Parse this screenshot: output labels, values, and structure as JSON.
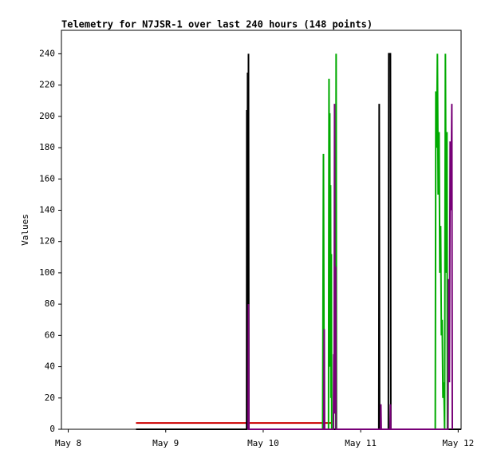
{
  "chart_data": {
    "type": "line",
    "title": "Telemetry for N7JSR-1 over last 240 hours (148 points)",
    "y_label": "Values",
    "xlim": [
      -0.07,
      4.03
    ],
    "xticks": [
      {
        "value": 0,
        "label": "May 8"
      },
      {
        "value": 1,
        "label": "May 9"
      },
      {
        "value": 2,
        "label": "May 10"
      },
      {
        "value": 3,
        "label": "May 11"
      },
      {
        "value": 4,
        "label": "May 12"
      }
    ],
    "ylim": [
      0,
      255
    ],
    "yticks": [
      0,
      20,
      40,
      60,
      80,
      100,
      120,
      140,
      160,
      180,
      200,
      220,
      240
    ],
    "grid": false,
    "series": [
      {
        "color": "#cc0000",
        "x": [
          0.695,
          2.699
        ],
        "values": [
          4,
          4
        ]
      },
      {
        "color": "#00aa00",
        "x": [
          2.61,
          2.618,
          2.622,
          2.626,
          2.67,
          2.675,
          2.68,
          2.683,
          2.687,
          2.691,
          2.695,
          2.699,
          2.703,
          2.744,
          2.748,
          2.752,
          3.765,
          3.771,
          3.779,
          3.787,
          3.795,
          3.804,
          3.812,
          3.82,
          3.828,
          3.836,
          3.844,
          3.853,
          3.861,
          3.869,
          3.877,
          3.885,
          3.89
        ],
        "values": [
          0,
          176,
          88,
          0,
          0,
          224,
          60,
          202,
          40,
          156,
          20,
          112,
          0,
          0,
          240,
          0,
          0,
          216,
          180,
          240,
          150,
          190,
          100,
          130,
          60,
          70,
          20,
          30,
          0,
          240,
          100,
          190,
          0
        ]
      },
      {
        "color": "#000000",
        "x": [
          0.695,
          1.83,
          1.832,
          1.836,
          1.84,
          1.844,
          1.849,
          1.853,
          3.186,
          3.19,
          3.194,
          3.284,
          3.288,
          3.297,
          3.305,
          3.309,
          4.03
        ],
        "values": [
          0,
          0,
          204,
          0,
          228,
          0,
          240,
          0,
          0,
          208,
          0,
          0,
          240,
          240,
          240,
          0,
          0
        ]
      },
      {
        "color": "#770077",
        "x": [
          1.845,
          1.849,
          1.853,
          2.622,
          2.626,
          2.63,
          2.72,
          2.724,
          2.728,
          2.732,
          2.736,
          2.744,
          2.748,
          3.203,
          3.207,
          3.211,
          3.301,
          3.305,
          3.309,
          3.895,
          3.902,
          3.91,
          3.918,
          3.926,
          3.935,
          3.94
        ],
        "values": [
          0,
          80,
          0,
          0,
          64,
          0,
          0,
          48,
          20,
          208,
          10,
          104,
          0,
          0,
          16,
          0,
          0,
          16,
          0,
          0,
          96,
          30,
          184,
          140,
          208,
          0
        ]
      }
    ]
  }
}
